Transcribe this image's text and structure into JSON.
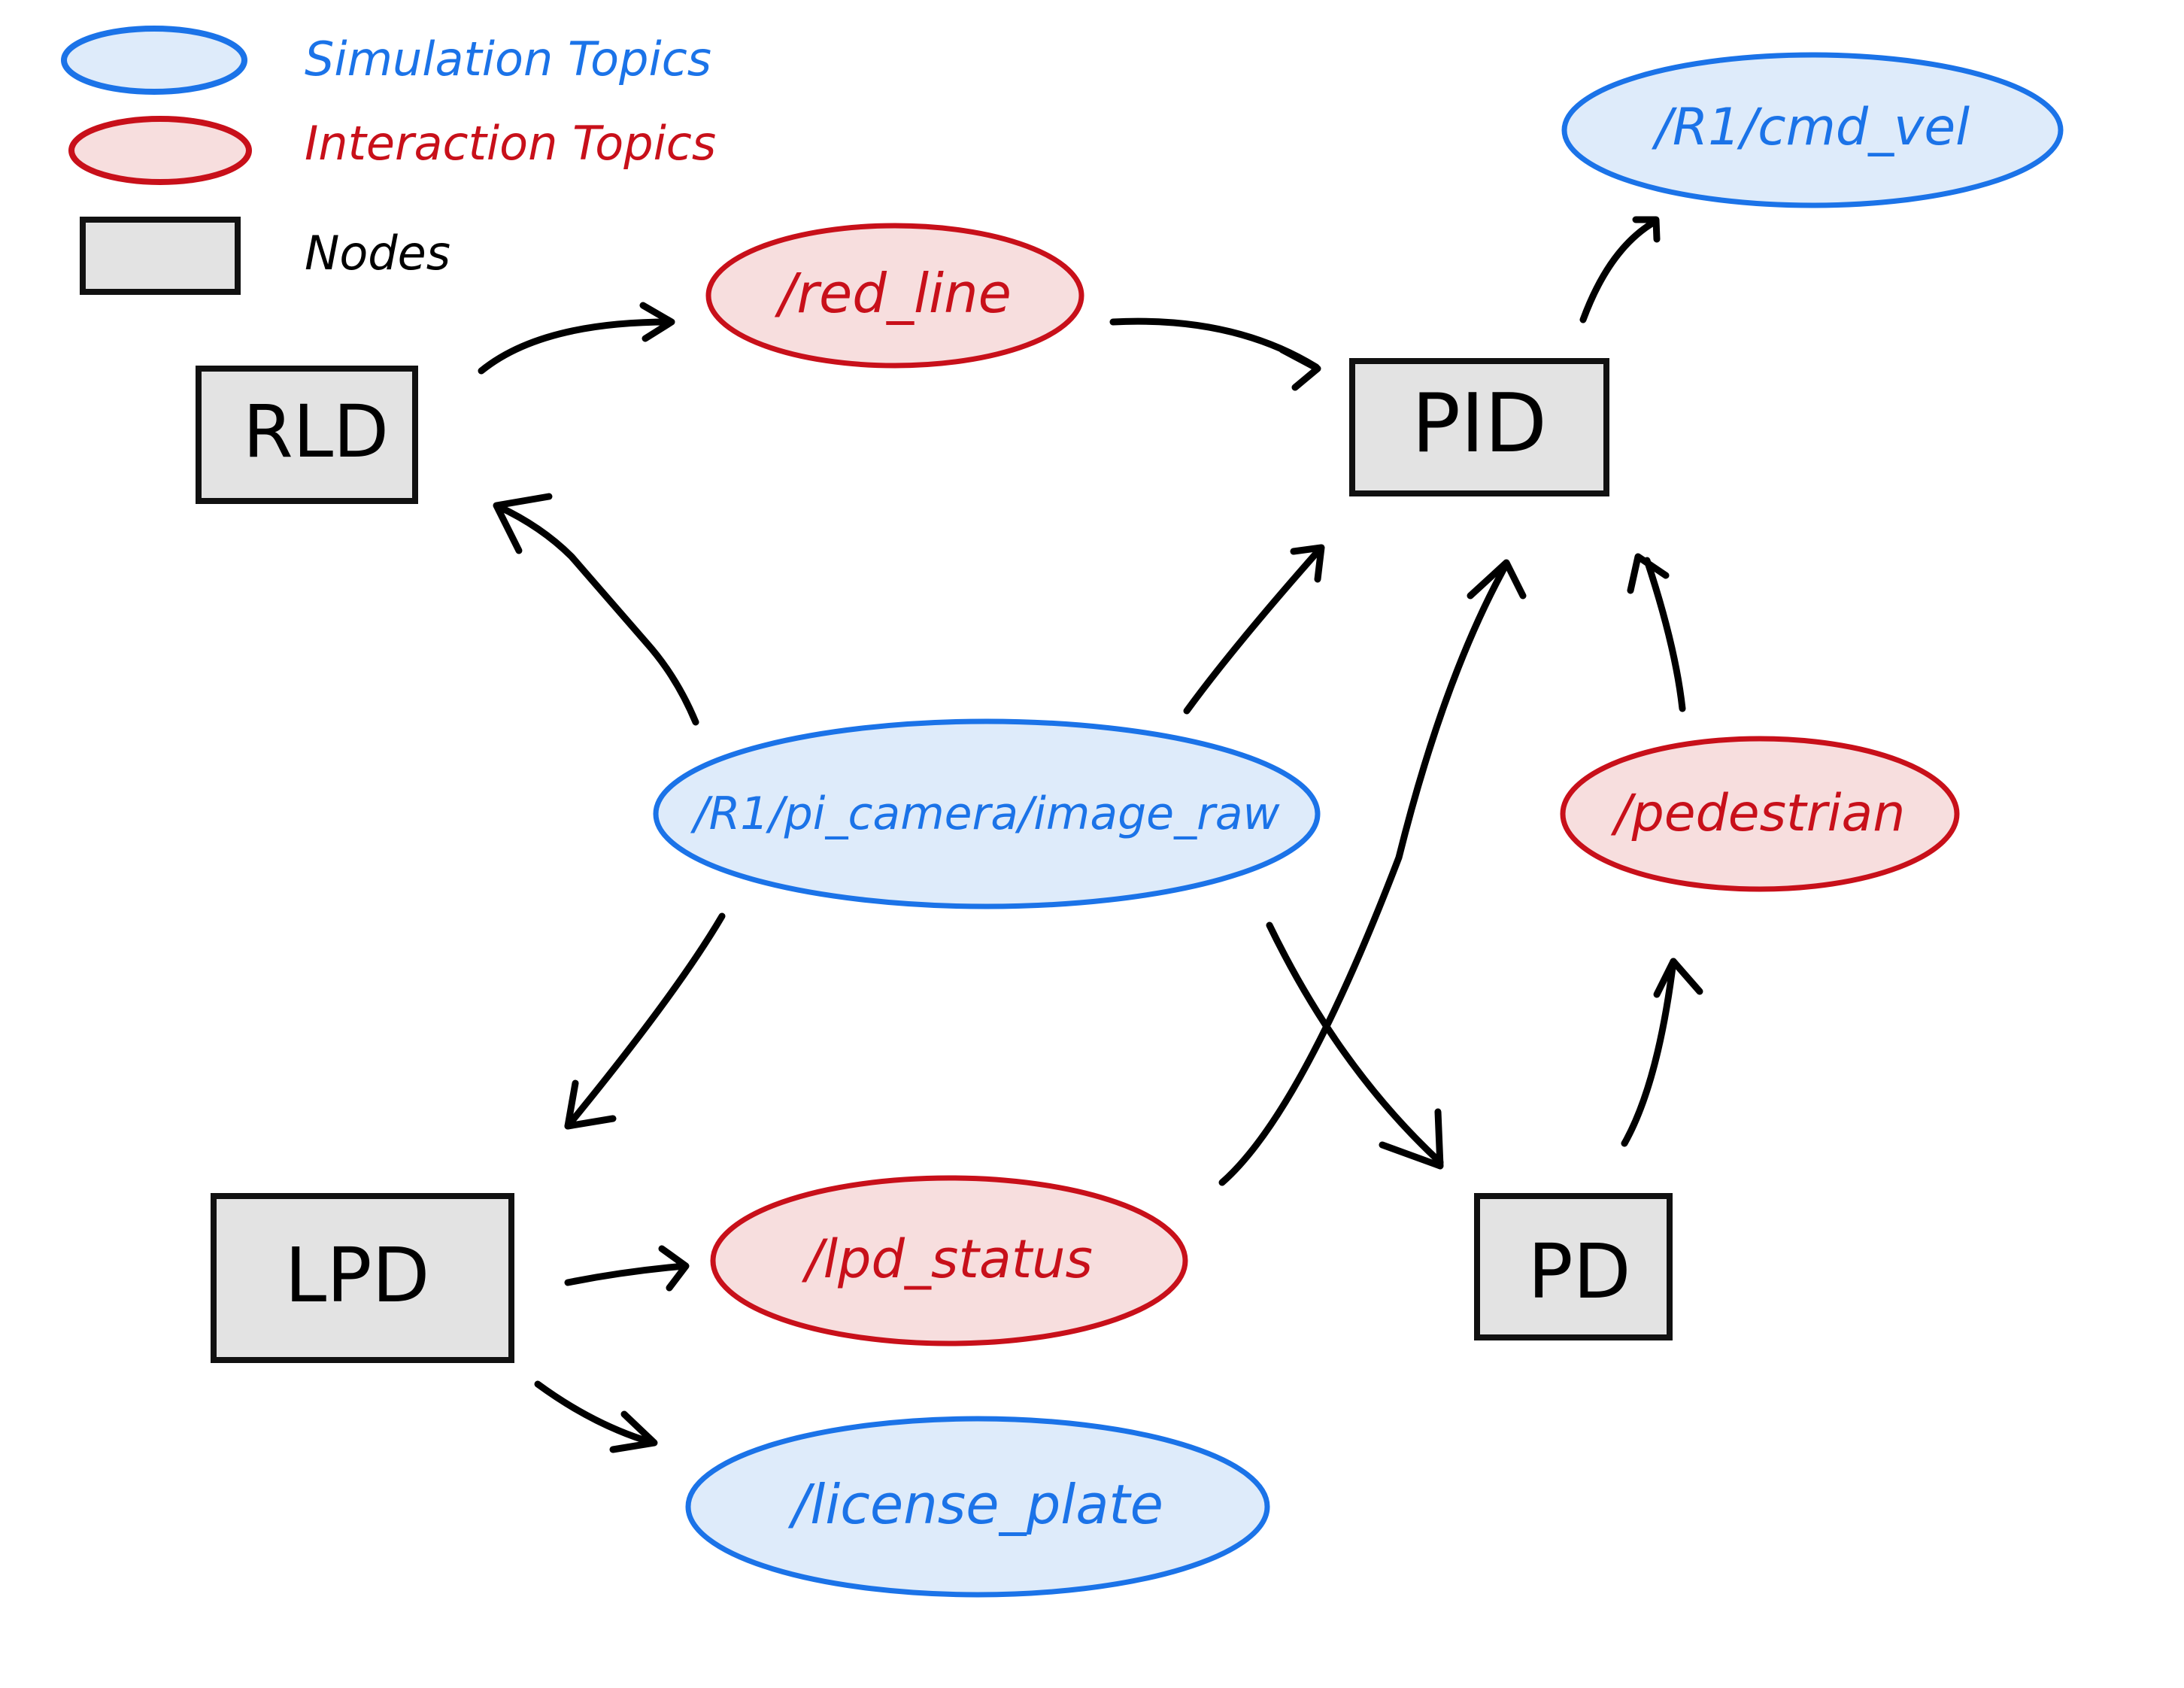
{
  "colors": {
    "simulation_fill": "#deebfa",
    "simulation_stroke": "#1b73e8",
    "simulation_text": "#1b73e8",
    "interaction_fill": "#f7dede",
    "interaction_stroke": "#c8101a",
    "interaction_text": "#c8101a",
    "node_fill": "#e3e3e3",
    "node_stroke": "#111111",
    "arrow": "#000000"
  },
  "legend": {
    "simulation_label": "Simulation Topics",
    "interaction_label": "Interaction Topics",
    "nodes_label": "Nodes"
  },
  "nodes": {
    "rld": "RLD",
    "pid": "PID",
    "lpd": "LPD",
    "pd": "PD"
  },
  "topics": {
    "red_line": "/red_line",
    "cmd_vel": "/R1/cmd_vel",
    "camera": "/R1/pi_camera/image_raw",
    "pedestrian": "/pedestrian",
    "lpd_status": "/lpd_status",
    "license_plate": "/license_plate"
  }
}
